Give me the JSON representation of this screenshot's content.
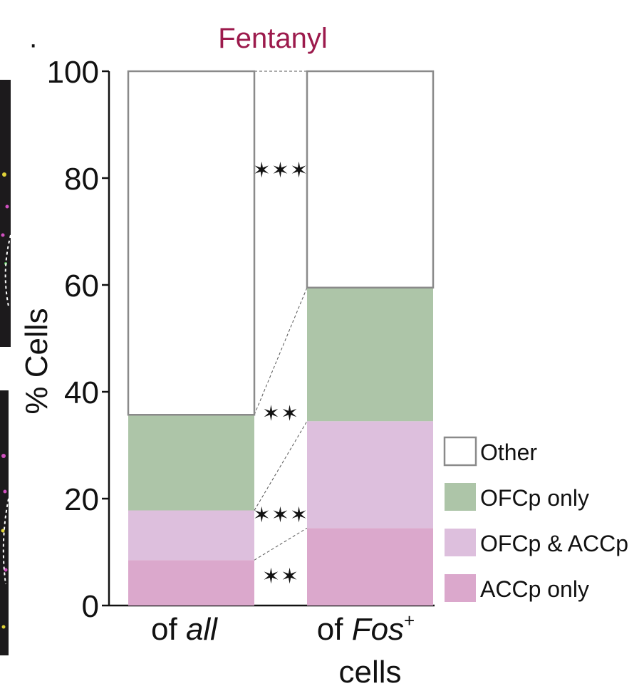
{
  "chart_data": {
    "type": "bar",
    "stacked": true,
    "normalized_percent": true,
    "title": "Fentanyl",
    "title_color": "#9c1a4c",
    "ylabel": "% Cells",
    "ylim": [
      0,
      100
    ],
    "yticks": [
      "0",
      "20",
      "40",
      "60",
      "80",
      "100"
    ],
    "yticks_values": [
      0,
      20,
      40,
      60,
      80,
      100
    ],
    "categories": [
      {
        "parts": [
          "of ",
          "all"
        ],
        "italic": [
          false,
          true
        ],
        "sup": "",
        "line2": ""
      },
      {
        "parts": [
          "of ",
          "Fos"
        ],
        "italic": [
          false,
          true
        ],
        "sup": "+",
        "line2": "cells"
      }
    ],
    "series": [
      {
        "name": "ACCp only",
        "color": "#dba8cc",
        "values": [
          8.5,
          14.5
        ]
      },
      {
        "name": "OFCp & ACCp",
        "color": "#ddbfdd",
        "values": [
          9.3,
          20.0
        ]
      },
      {
        "name": "OFCp only",
        "color": "#adc5a8",
        "values": [
          17.9,
          25.0
        ]
      },
      {
        "name": "Other",
        "color": "#ffffff",
        "values": [
          64.3,
          40.5
        ]
      }
    ],
    "legend_order": [
      "Other",
      "OFCp only",
      "OFCp & ACCp",
      "ACCp only"
    ],
    "legend_position": "bottom-right",
    "significance": [
      "**",
      "***",
      "**",
      "***"
    ],
    "grid": false
  }
}
